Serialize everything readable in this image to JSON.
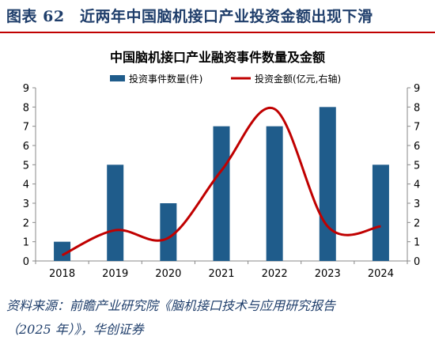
{
  "figure": {
    "title": "图表 62　近两年中国脑机接口产业投资金额出现下滑",
    "source_line1": "资料来源：前瞻产业研究院《脑机接口技术与应用研究报告",
    "source_line2": "（2025 年）》，华创证券"
  },
  "chart_data": {
    "type": "bar+line",
    "title": "中国脑机接口产业融资事件数量及金额",
    "categories": [
      "2018",
      "2019",
      "2020",
      "2021",
      "2022",
      "2023",
      "2024"
    ],
    "series": [
      {
        "name": "投资事件数量(件)",
        "type": "bar",
        "axis": "left",
        "color": "#1f5c8b",
        "values": [
          1,
          5,
          3,
          7,
          7,
          8,
          5
        ]
      },
      {
        "name": "投资金额(亿元,右轴)",
        "type": "line",
        "axis": "right",
        "color": "#c00000",
        "values": [
          0.3,
          1.6,
          1.2,
          4.7,
          7.9,
          1.8,
          1.8
        ]
      }
    ],
    "ylim_left": [
      0,
      9
    ],
    "ylim_right": [
      0,
      9
    ],
    "yticks_left": [
      "0",
      "1",
      "2",
      "3",
      "4",
      "5",
      "6",
      "7",
      "8",
      "9"
    ],
    "yticks_right": [
      "0",
      "1",
      "2",
      "3",
      "4",
      "5",
      "6",
      "7",
      "8",
      "9"
    ],
    "legend_position": "top-center",
    "grid": false
  }
}
